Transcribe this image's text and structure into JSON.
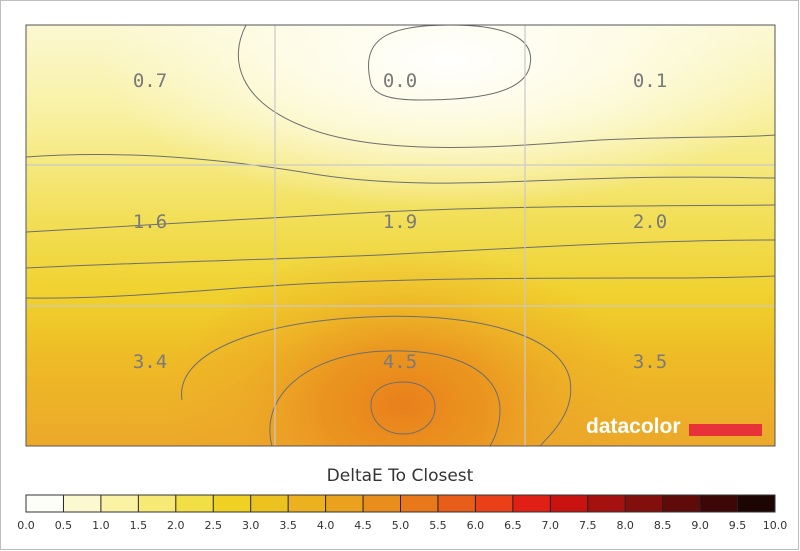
{
  "chart_data": {
    "type": "heatmap",
    "rows": 3,
    "cols": 3,
    "values": [
      [
        0.7,
        0.0,
        0.1
      ],
      [
        1.6,
        1.9,
        2.0
      ],
      [
        3.4,
        4.5,
        3.5
      ]
    ],
    "value_labels": [
      [
        "0.7",
        "0.0",
        "0.1"
      ],
      [
        "1.6",
        "1.9",
        "2.0"
      ],
      [
        "3.4",
        "4.5",
        "3.5"
      ]
    ],
    "legend": {
      "title": "DeltaE To Closest",
      "min": 0.0,
      "max": 10.0,
      "step": 0.5,
      "tick_labels": [
        "0.0",
        "0.5",
        "1.0",
        "1.5",
        "2.0",
        "2.5",
        "3.0",
        "3.5",
        "4.0",
        "4.5",
        "5.0",
        "5.5",
        "6.0",
        "6.5",
        "7.0",
        "7.5",
        "8.0",
        "8.5",
        "9.0",
        "9.5",
        "10.0"
      ],
      "colors": [
        "#fefef8",
        "#fcf9d0",
        "#faf3a4",
        "#f6ea75",
        "#f2df45",
        "#efd124",
        "#ecc21e",
        "#ebb11e",
        "#e9a11e",
        "#e98e1d",
        "#e9781b",
        "#e95d1a",
        "#e94017",
        "#e12015",
        "#c81311",
        "#a5110f",
        "#820f0c",
        "#5e0b09",
        "#3e0707",
        "#1d0504"
      ]
    },
    "watermark": "datacolor",
    "grid": true
  }
}
